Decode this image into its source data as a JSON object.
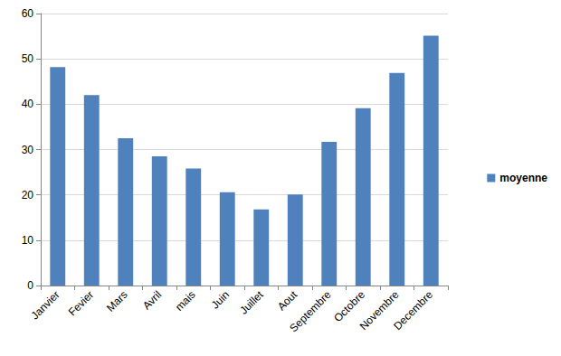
{
  "chart_data": {
    "type": "bar",
    "categories": [
      "Janvier",
      "Fevier",
      "Mars",
      "Avril",
      "mais",
      "Juin",
      "Juillet",
      "Aout",
      "Septembre",
      "Octobre",
      "Novembre",
      "Decembre"
    ],
    "series": [
      {
        "name": "moyenne",
        "color": "#4f81bd",
        "values": [
          48.2,
          42.0,
          32.5,
          28.5,
          25.8,
          20.6,
          16.8,
          20.1,
          31.7,
          39.1,
          46.9,
          55.1
        ]
      }
    ],
    "ylim": [
      0,
      60
    ],
    "yticks": [
      0,
      10,
      20,
      30,
      40,
      50,
      60
    ],
    "grid": true,
    "legend": "right"
  }
}
